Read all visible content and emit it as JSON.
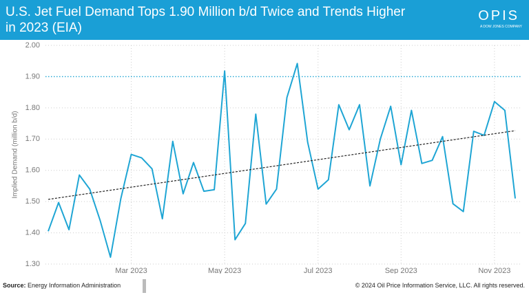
{
  "chart_data": {
    "type": "line",
    "title": "U.S. Jet Fuel Demand Tops 1.90 Million b/d Twice and Trends Higher in 2023 (EIA)",
    "brand": "OPIS",
    "brand_tagline": "A DOW JONES COMPANY",
    "y_label": "Implied Demand (million b/d)",
    "categories": [
      null,
      null,
      null,
      null,
      null,
      null,
      null,
      null,
      "Mar 2023",
      null,
      null,
      null,
      null,
      null,
      null,
      null,
      null,
      "May 2023",
      null,
      null,
      null,
      null,
      null,
      null,
      null,
      null,
      "Jul 2023",
      null,
      null,
      null,
      null,
      null,
      null,
      null,
      "Sep 2023",
      null,
      null,
      null,
      null,
      null,
      null,
      null,
      null,
      "Nov 2023",
      null,
      null
    ],
    "series": [
      {
        "color": "#1ea5d4",
        "values": [
          1.405,
          1.497,
          1.41,
          1.585,
          1.54,
          1.44,
          1.322,
          1.51,
          1.651,
          1.64,
          1.605,
          1.445,
          1.693,
          1.525,
          1.625,
          1.533,
          1.538,
          1.918,
          1.378,
          1.43,
          1.78,
          1.492,
          1.54,
          1.833,
          1.942,
          1.69,
          1.54,
          1.57,
          1.81,
          1.73,
          1.81,
          1.55,
          1.7,
          1.805,
          1.618,
          1.792,
          1.622,
          1.632,
          1.708,
          1.493,
          1.468,
          1.725,
          1.712,
          1.82,
          1.792,
          1.51
        ]
      }
    ],
    "trendline": {
      "color": "#222222",
      "values": [
        1.507,
        1.727
      ]
    },
    "reference_line": {
      "value": 1.9,
      "color": "#1ea5d4"
    },
    "ylim": [
      1.3,
      2.0
    ],
    "yticks": [
      {
        "value": 1.3,
        "label": "1.30"
      },
      {
        "value": 1.4,
        "label": "1.40"
      },
      {
        "value": 1.5,
        "label": "1.50"
      },
      {
        "value": 1.6,
        "label": "1.60"
      },
      {
        "value": 1.7,
        "label": "1.70"
      },
      {
        "value": 1.8,
        "label": "1.80"
      },
      {
        "value": 1.9,
        "label": "1.90"
      },
      {
        "value": 2.0,
        "label": "2.00"
      }
    ],
    "grid": true,
    "source_label": "Source:",
    "source": "Energy Information Administration",
    "copyright": "© 2024 Oil Price Information Service, LLC. All rights reserved."
  }
}
